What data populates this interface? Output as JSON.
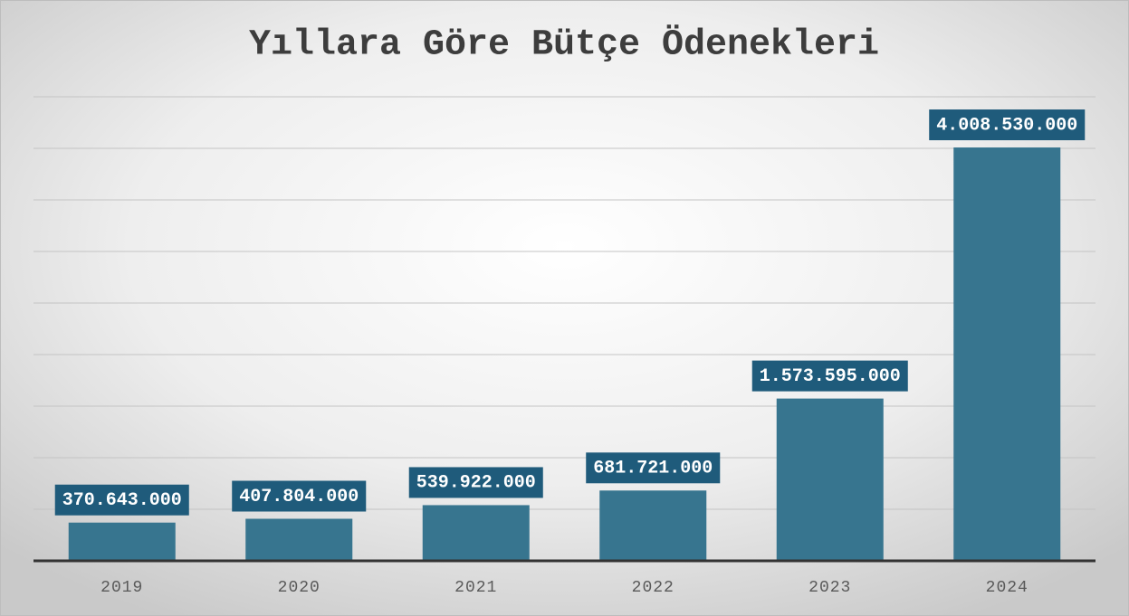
{
  "chart_data": {
    "type": "bar",
    "title": "Yıllara Göre Bütçe Ödenekleri",
    "categories": [
      "2019",
      "2020",
      "2021",
      "2022",
      "2023",
      "2024"
    ],
    "values": [
      370643000,
      407804000,
      539922000,
      681721000,
      1573595000,
      4008530000
    ],
    "value_labels": [
      "370.643.000",
      "407.804.000",
      "539.922.000",
      "681.721.000",
      "1.573.595.000",
      "4.008.530.000"
    ],
    "color": "#37758f",
    "ylim": [
      0,
      4500000000
    ],
    "yticks": [
      0,
      500000000,
      1000000000,
      1500000000,
      2000000000,
      2500000000,
      3000000000,
      3500000000,
      4000000000,
      4500000000
    ],
    "grid": true
  }
}
